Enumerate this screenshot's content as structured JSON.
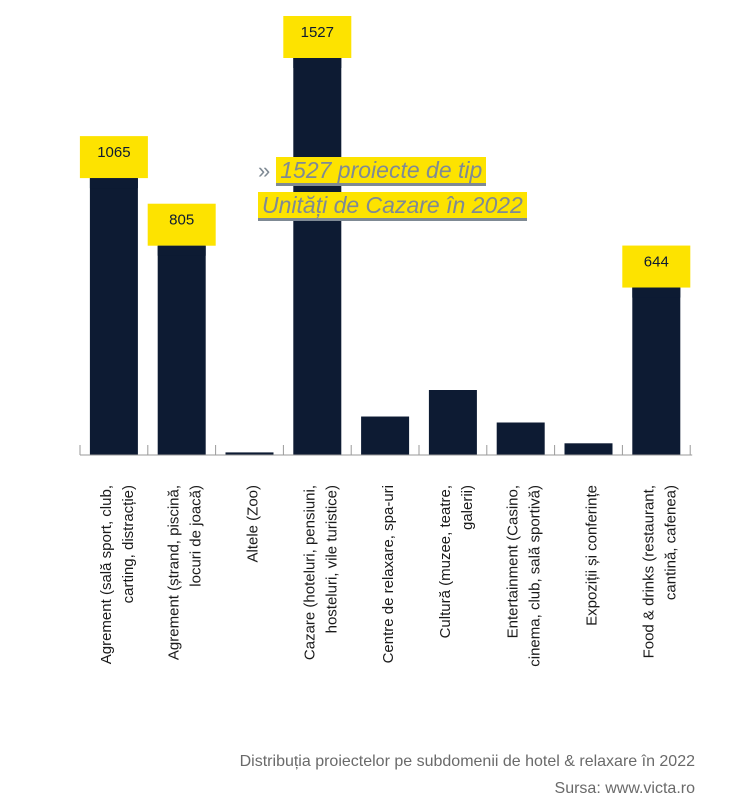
{
  "chart_data": {
    "type": "bar",
    "categories": [
      [
        "Agrement (sală sport, club,",
        "carting, distracție)"
      ],
      [
        "Agrement (ștrand, piscină,",
        "locuri de joacă)"
      ],
      [
        "Altele (Zoo)"
      ],
      [
        "Cazare (hoteluri, pensiuni,",
        "hosteluri, vile turistice)"
      ],
      [
        "Centre de relaxare, spa-uri"
      ],
      [
        "Cultură (muzee, teatre,",
        "galerii)"
      ],
      [
        "Entertainment  (Casino,",
        "cinema, club, sală sportivă)"
      ],
      [
        "Expoziții și conferințe"
      ],
      [
        "Food & drinks (restaurant,",
        "cantină, cafenea)"
      ]
    ],
    "values": [
      1065,
      805,
      10,
      1527,
      148,
      250,
      125,
      45,
      644
    ],
    "labeled": [
      true,
      true,
      false,
      true,
      false,
      false,
      false,
      false,
      true
    ],
    "value_labels": [
      "1065",
      "805",
      "",
      "1527",
      "",
      "",
      "",
      "",
      "644"
    ],
    "ylim": [
      0,
      1527
    ],
    "bar_color": "#0d1b33",
    "label_highlight_color": "#fde300",
    "grid": false,
    "legend": "none"
  },
  "callout": {
    "arrow": "»",
    "line1": "1527 proiecte de tip",
    "line2": "Unități de Cazare în 2022"
  },
  "caption": {
    "title": "Distribuția proiectelor pe subdomenii de hotel & relaxare în 2022",
    "source": "Sursa: www.victa.ro"
  }
}
